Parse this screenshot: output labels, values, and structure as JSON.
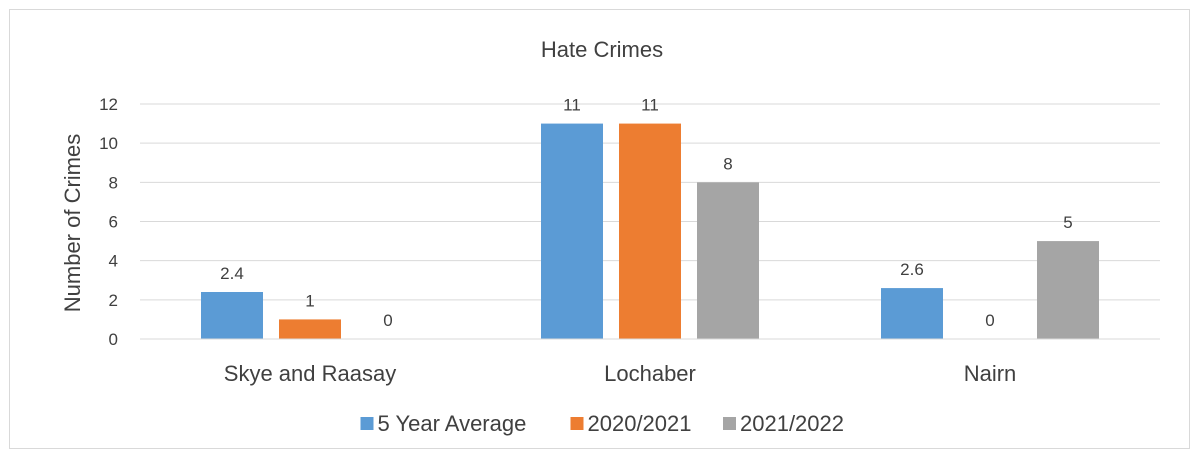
{
  "chart_data": {
    "type": "bar",
    "title": "Hate Crimes",
    "xlabel": "",
    "ylabel": "Number of Crimes",
    "categories": [
      "Skye and Raasay",
      "Lochaber",
      "Nairn"
    ],
    "series": [
      {
        "name": "5 Year Average",
        "values": [
          2.4,
          11,
          2.6
        ],
        "labels": [
          "2.4",
          "11",
          "2.6"
        ],
        "color": "#5b9bd5"
      },
      {
        "name": "2020/2021",
        "values": [
          1,
          11,
          0
        ],
        "labels": [
          "1",
          "11",
          "0"
        ],
        "color": "#ed7d31"
      },
      {
        "name": "2021/2022",
        "values": [
          0,
          8,
          5
        ],
        "labels": [
          "0",
          "8",
          "5"
        ],
        "color": "#a5a5a5"
      }
    ],
    "ylim": [
      0,
      12
    ],
    "yticks": [
      0,
      2,
      4,
      6,
      8,
      10,
      12
    ],
    "grid": true,
    "legend": "bottom"
  }
}
